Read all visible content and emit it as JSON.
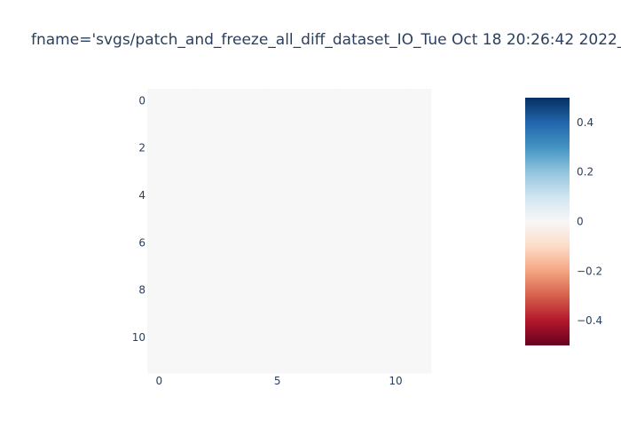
{
  "chart_data": {
    "type": "heatmap",
    "title": "fname='svgs/patch_and_freeze_all_diff_dataset_IO_Tue Oct 18 20:26:42 2022_",
    "rows": 12,
    "cols": 12,
    "z_value": 0,
    "x_ticks": [
      "0",
      "5",
      "10"
    ],
    "x_tick_values": [
      0,
      5,
      10
    ],
    "y_ticks": [
      "0",
      "2",
      "4",
      "6",
      "8",
      "10"
    ],
    "y_tick_values": [
      0,
      2,
      4,
      6,
      8,
      10
    ],
    "colorbar": {
      "zmin": -0.5,
      "zmax": 0.5,
      "ticks": [
        "0.4",
        "0.2",
        "0",
        "−0.2",
        "−0.4"
      ],
      "tick_values": [
        0.4,
        0.2,
        0,
        -0.2,
        -0.4
      ],
      "colorscale": "RdBu",
      "colors": [
        "#67001f",
        "#b2182b",
        "#d6604d",
        "#f4a582",
        "#fddbc7",
        "#f7f7f7",
        "#d1e5f0",
        "#92c5de",
        "#4393c3",
        "#2166ac",
        "#053061"
      ]
    },
    "cell_color": "#f7f7f7"
  }
}
